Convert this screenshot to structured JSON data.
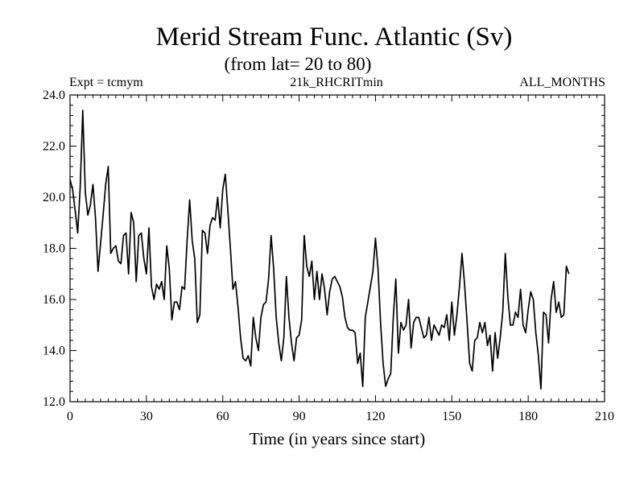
{
  "chart_data": {
    "type": "line",
    "title": "Merid Stream Func. Atlantic (Sv)",
    "subtitle": "(from lat= 20 to 80)",
    "header_left": "Expt = tcmym",
    "header_center": "21k_RHCRITmin",
    "header_right": "ALL_MONTHS",
    "xlabel": "Time (in years since start)",
    "ylabel": "",
    "xlim": [
      0,
      210
    ],
    "ylim": [
      12.0,
      24.0
    ],
    "xticks": [
      0,
      30,
      60,
      90,
      120,
      150,
      180,
      210
    ],
    "xtick_labels": [
      "0",
      "30",
      "60",
      "90",
      "120",
      "150",
      "180",
      "210"
    ],
    "yticks": [
      12.0,
      14.0,
      16.0,
      18.0,
      20.0,
      22.0,
      24.0
    ],
    "ytick_labels": [
      "12.0",
      "14.0",
      "16.0",
      "18.0",
      "20.0",
      "22.0",
      "24.0"
    ],
    "x_minor_step": 3,
    "y_minor_step": 0.4,
    "grid": false,
    "series": [
      {
        "name": "Merid Stream Func. Atlantic",
        "color": "#000000",
        "x_start": 0,
        "x_step": 1,
        "values": [
          20.7,
          20.3,
          19.5,
          18.6,
          20.4,
          23.4,
          20.2,
          19.3,
          19.7,
          20.5,
          19.2,
          17.1,
          18.2,
          19.3,
          20.5,
          21.2,
          17.8,
          18.0,
          18.1,
          17.5,
          17.4,
          18.5,
          18.6,
          17.0,
          19.4,
          19.0,
          16.7,
          18.5,
          18.6,
          17.6,
          17.0,
          18.8,
          16.5,
          16.0,
          16.6,
          16.4,
          16.7,
          16.0,
          18.1,
          17.2,
          15.2,
          15.9,
          15.9,
          15.6,
          16.5,
          16.4,
          18.3,
          19.9,
          18.3,
          17.6,
          15.1,
          15.4,
          18.7,
          18.6,
          17.8,
          18.9,
          19.2,
          19.1,
          20.0,
          18.8,
          20.3,
          20.9,
          19.5,
          18.0,
          16.4,
          16.7,
          15.7,
          14.5,
          13.7,
          13.6,
          13.8,
          13.4,
          15.3,
          14.5,
          14.0,
          15.3,
          15.8,
          15.9,
          16.8,
          18.5,
          17.2,
          15.3,
          14.3,
          13.6,
          14.5,
          16.9,
          15.3,
          14.3,
          13.6,
          14.5,
          14.6,
          15.2,
          18.5,
          17.3,
          16.9,
          17.5,
          16.0,
          17.1,
          16.0,
          17.0,
          16.4,
          15.4,
          16.3,
          16.8,
          16.9,
          16.7,
          16.5,
          16.1,
          15.3,
          14.9,
          14.8,
          14.8,
          14.7,
          13.5,
          13.9,
          12.6,
          15.3,
          15.9,
          16.5,
          17.1,
          18.4,
          17.2,
          15.1,
          13.5,
          12.6,
          12.9,
          13.1,
          15.3,
          16.8,
          13.9,
          15.1,
          14.8,
          15.0,
          16.0,
          14.1,
          15.1,
          15.3,
          15.3,
          14.9,
          14.5,
          14.6,
          15.3,
          14.4,
          15.0,
          14.8,
          14.6,
          15.0,
          14.9,
          15.4,
          14.4,
          15.9,
          14.6,
          15.4,
          16.5,
          17.8,
          16.6,
          15.1,
          13.5,
          13.2,
          14.4,
          14.5,
          15.1,
          14.7,
          15.1,
          14.2,
          14.6,
          13.2,
          14.7,
          13.7,
          14.5,
          15.5,
          17.8,
          16.1,
          15.0,
          15.0,
          15.5,
          15.3,
          16.4,
          15.0,
          14.7,
          15.6,
          16.3,
          16.0,
          14.7,
          13.8,
          12.5,
          15.5,
          15.4,
          14.3,
          16.0,
          16.7,
          15.5,
          15.9,
          15.3,
          15.4,
          17.3,
          17.0
        ]
      }
    ]
  }
}
